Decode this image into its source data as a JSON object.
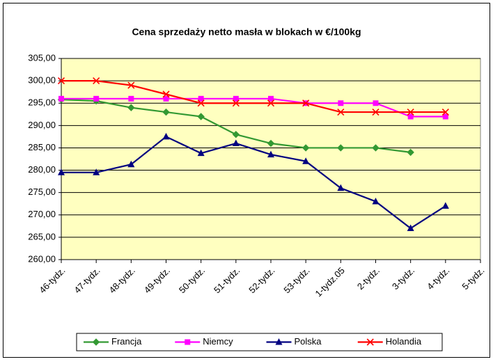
{
  "chart_data": {
    "type": "line",
    "title": "Cena sprzedaży netto masła w blokach w €/100kg",
    "categories": [
      "46-tydz.",
      "47-tydz.",
      "48-tydz.",
      "49-tydz.",
      "50-tydz.",
      "51-tydz.",
      "52-tydz.",
      "53-tydz.",
      "1-tydz.05",
      "2-tydz.",
      "3-tydz.",
      "4-tydz.",
      "5-tydz."
    ],
    "series": [
      {
        "name": "Francja",
        "color": "#339933",
        "marker": "diamond",
        "values": [
          295.8,
          295.5,
          294,
          293,
          292,
          288,
          286,
          285,
          285,
          285,
          284,
          null,
          null
        ]
      },
      {
        "name": "Niemcy",
        "color": "#ff00ff",
        "marker": "square",
        "values": [
          296,
          296,
          296,
          296,
          296,
          296,
          296,
          295,
          295,
          295,
          292,
          292,
          null
        ]
      },
      {
        "name": "Polska",
        "color": "#000080",
        "marker": "triangle",
        "values": [
          279.5,
          279.5,
          281.3,
          287.5,
          283.8,
          286,
          283.5,
          282,
          276,
          273,
          267,
          272,
          null
        ]
      },
      {
        "name": "Holandia",
        "color": "#ff0000",
        "marker": "x",
        "values": [
          300,
          300,
          299,
          297,
          295,
          295,
          295,
          295,
          293,
          293,
          293,
          293,
          null
        ]
      }
    ],
    "ylim": [
      260,
      305
    ],
    "yticks": [
      {
        "value": 260,
        "label": "260,00"
      },
      {
        "value": 265,
        "label": "265,00"
      },
      {
        "value": 270,
        "label": "270,00"
      },
      {
        "value": 275,
        "label": "275,00"
      },
      {
        "value": 280,
        "label": "280,00"
      },
      {
        "value": 285,
        "label": "285,00"
      },
      {
        "value": 290,
        "label": "290,00"
      },
      {
        "value": 295,
        "label": "295,00"
      },
      {
        "value": 300,
        "label": "300,00"
      },
      {
        "value": 305,
        "label": "305,00"
      }
    ],
    "grid": true,
    "legend": "bottom",
    "plot_background": "#ffffc0"
  }
}
